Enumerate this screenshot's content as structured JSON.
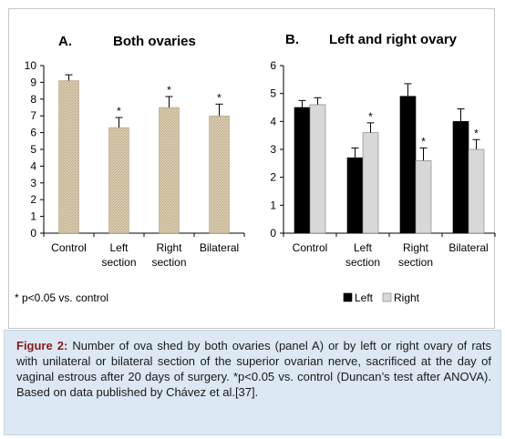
{
  "colors": {
    "caption_background": "#dce8f3",
    "caption_label": "#8b1a1a",
    "panel_a_bar": "#d8cbb0",
    "left_series": "#000000",
    "right_series": "#d8d8d8",
    "error_bar": "#000000"
  },
  "chart_data": [
    {
      "type": "bar",
      "panel_label": "A.",
      "title": "Both ovaries",
      "categories": [
        [
          "Control"
        ],
        [
          "Left",
          "section"
        ],
        [
          "Right",
          "section"
        ],
        [
          "Bilateral"
        ]
      ],
      "values": [
        9.1,
        6.3,
        7.5,
        7.0
      ],
      "errors": [
        0.35,
        0.6,
        0.65,
        0.7
      ],
      "significance": [
        "",
        "*",
        "*",
        "*"
      ],
      "ylim": [
        0,
        10
      ],
      "yticks": [
        0,
        1,
        2,
        3,
        4,
        5,
        6,
        7,
        8,
        9,
        10
      ],
      "xlabel": "",
      "ylabel": "",
      "grid": false,
      "legend": "none"
    },
    {
      "type": "bar",
      "panel_label": "B.",
      "title": "Left and right ovary",
      "categories": [
        [
          "Control"
        ],
        [
          "Left",
          "section"
        ],
        [
          "Right",
          "section"
        ],
        [
          "Bilateral"
        ]
      ],
      "series": [
        {
          "name": "Left",
          "values": [
            4.5,
            2.7,
            4.9,
            4.0
          ],
          "errors": [
            0.25,
            0.35,
            0.45,
            0.45
          ],
          "significance": [
            "",
            "",
            "",
            ""
          ]
        },
        {
          "name": "Right",
          "values": [
            4.6,
            3.6,
            2.6,
            3.0
          ],
          "errors": [
            0.25,
            0.35,
            0.45,
            0.35
          ],
          "significance": [
            "",
            "*",
            "*",
            "*"
          ]
        }
      ],
      "ylim": [
        0,
        6
      ],
      "yticks": [
        0,
        1,
        2,
        3,
        4,
        5,
        6
      ],
      "xlabel": "",
      "ylabel": "",
      "grid": false,
      "legend": "bottom"
    }
  ],
  "footnote": "* p<0.05 vs. control",
  "caption": {
    "label": "Figure 2:",
    "text": " Number of ova shed by both ovaries (panel A) or by left or right ovary of rats with unilateral or bilateral section of the superior ovarian nerve, sacrificed at the day of vaginal estrous after 20 days of surgery. *p<0.05 vs. control (Duncan’s test after ANOVA). Based on data published by Chávez et al.[37]."
  }
}
